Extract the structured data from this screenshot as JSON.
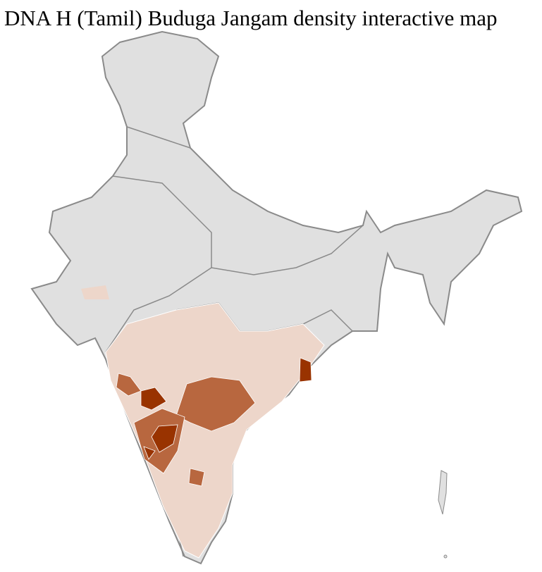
{
  "title": "DNA H (Tamil) Buduga Jangam density interactive map",
  "colors": {
    "no_data": "#e0e0e0",
    "border": "#8a8a8a",
    "district_border": "#ffffff",
    "low": "#edd6ca",
    "medium": "#b8673f",
    "high": "#993300"
  }
}
